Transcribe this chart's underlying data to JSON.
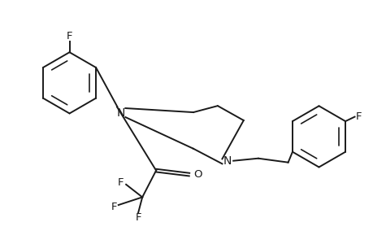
{
  "background": "#ffffff",
  "line_color": "#1a1a1a",
  "line_width": 1.4,
  "font_size": 9.5,
  "fig_width": 4.6,
  "fig_height": 3.0,
  "dpi": 100,
  "xlim": [
    0,
    10
  ],
  "ylim": [
    0,
    6.5
  ]
}
